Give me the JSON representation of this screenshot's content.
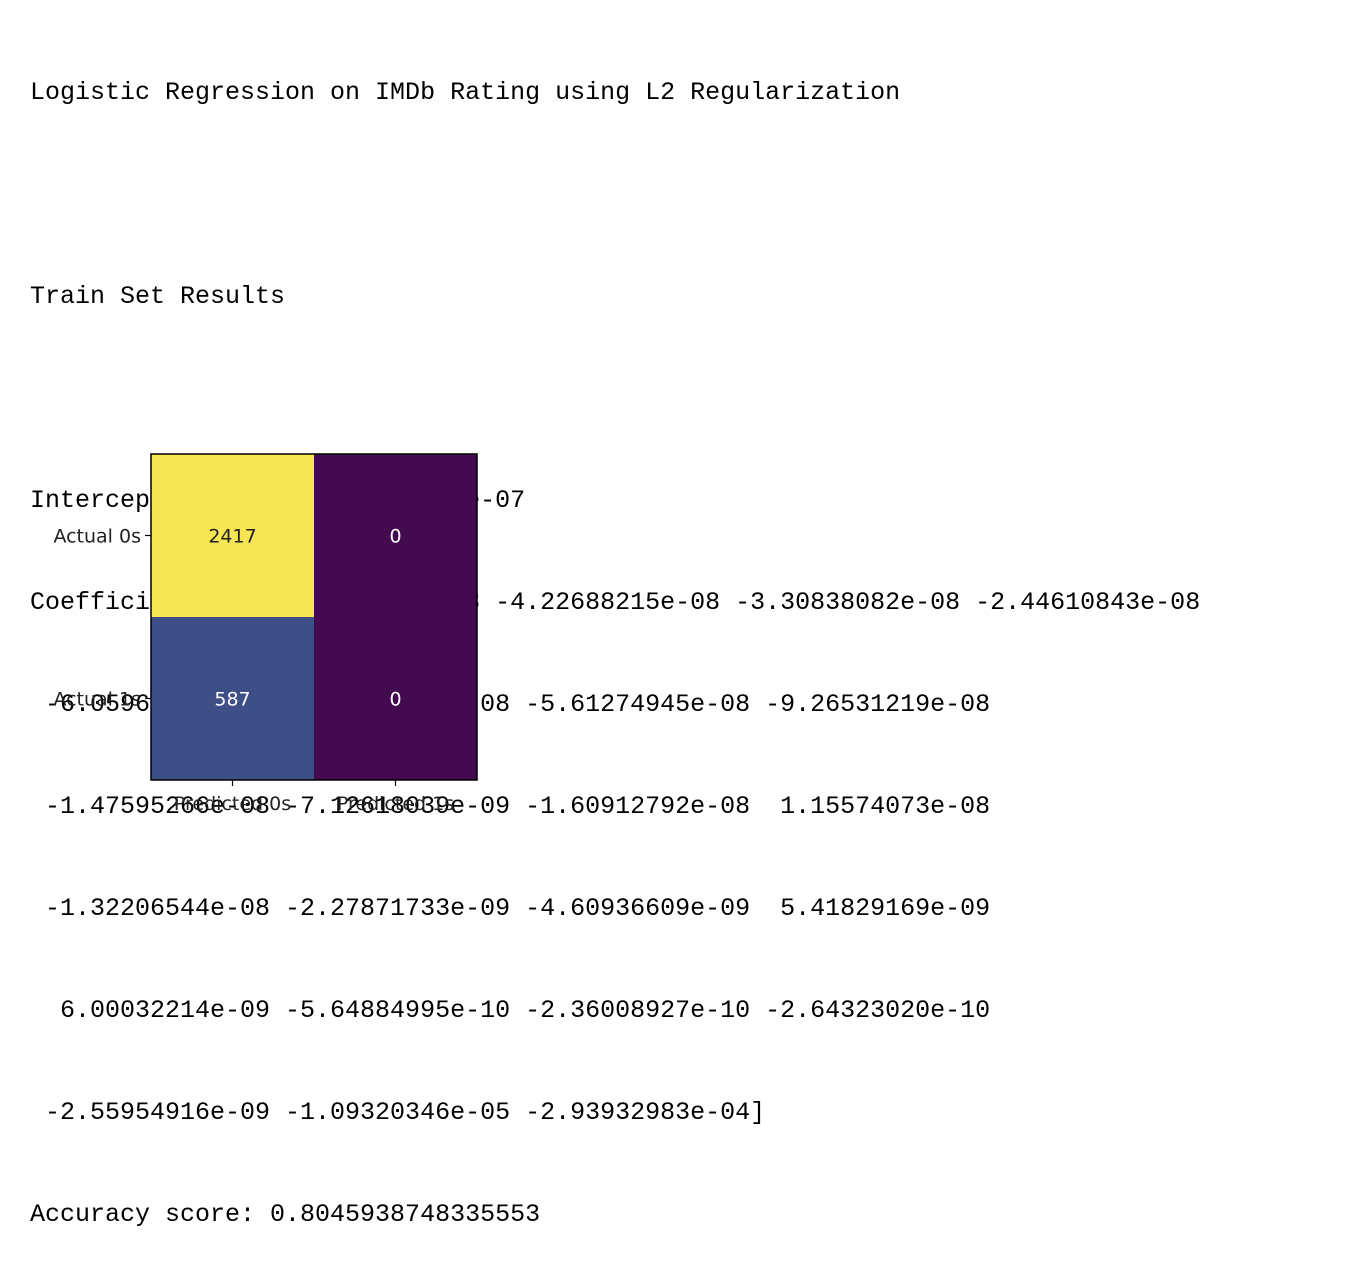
{
  "output": {
    "title": "Logistic Regression on IMDb Rating using L2 Regularization",
    "section": "Train Set Results",
    "intercept_line": "Intercept: -1.458621248903283e-07",
    "coefficient_lines": [
      "Coefficients: [-5.05718517e-08 -4.22688215e-08 -3.30838082e-08 -2.44610843e-08",
      " -6.05966539e-09 -1.13459248e-08 -5.61274945e-08 -9.26531219e-08",
      " -1.47595266e-08 -7.12618039e-09 -1.60912792e-08  1.15574073e-08",
      " -1.32206544e-08 -2.27871733e-09 -4.60936609e-09  5.41829169e-09",
      "  6.00032214e-09 -5.64884995e-10 -2.36008927e-10 -2.64323020e-10",
      " -2.55954916e-09 -1.09320346e-05 -2.93932983e-04]"
    ],
    "accuracy_line": "Accuracy score: 0.8045938748335553"
  },
  "chart_data": {
    "type": "heatmap",
    "title": "",
    "xlabel": "",
    "ylabel": "",
    "x_categories": [
      "Predicted 0s",
      "Predicted 1s"
    ],
    "y_categories": [
      "Actual 0s",
      "Actual 1s"
    ],
    "values": [
      [
        2417,
        0
      ],
      [
        587,
        0
      ]
    ],
    "colormap": "viridis",
    "cell_colors": [
      [
        "#f7e654",
        "#440a4f"
      ],
      [
        "#3e4e87",
        "#440a4f"
      ]
    ],
    "label_colors": [
      [
        "#222222",
        "#ffffff"
      ],
      [
        "#ffffff",
        "#ffffff"
      ]
    ],
    "grid": false,
    "legend": "none"
  }
}
